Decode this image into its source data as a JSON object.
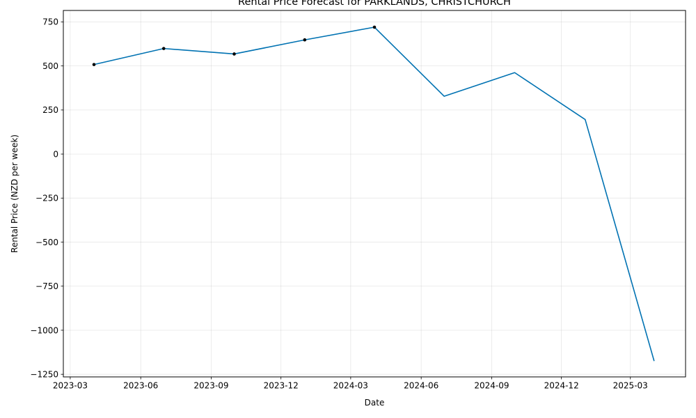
{
  "chart_data": {
    "type": "line",
    "title": "Rental Price Forecast for PARKLANDS, CHRISTCHURCH",
    "xlabel": "Date",
    "ylabel": "Rental Price (NZD per week)",
    "x_tick_labels": [
      "2023-03",
      "2023-06",
      "2023-09",
      "2023-12",
      "2024-03",
      "2024-06",
      "2024-09",
      "2024-12",
      "2025-03"
    ],
    "y_tick_labels": [
      "−1250",
      "−1000",
      "−750",
      "−500",
      "−250",
      "0",
      "250",
      "500",
      "750"
    ],
    "y_ticks": [
      -1250,
      -1000,
      -750,
      -500,
      -250,
      0,
      250,
      500,
      750
    ],
    "ylim": [
      -1265,
      815
    ],
    "xlim": [
      "2023-02-20",
      "2025-05-12"
    ],
    "grid": true,
    "series": [
      {
        "role": "forecast-line",
        "color": "#0072B2",
        "x": [
          "2023-04-01",
          "2023-07-01",
          "2023-10-01",
          "2024-01-01",
          "2024-04-01",
          "2024-07-01",
          "2024-10-01",
          "2025-01-01",
          "2025-04-01"
        ],
        "values": [
          508,
          599,
          568,
          648,
          720,
          328,
          462,
          196,
          -1175
        ]
      },
      {
        "role": "observed-points",
        "color": "#000000",
        "x": [
          "2023-04-01",
          "2023-07-01",
          "2023-10-01",
          "2024-01-01",
          "2024-04-01"
        ],
        "values": [
          508,
          599,
          568,
          648,
          720
        ]
      }
    ]
  }
}
